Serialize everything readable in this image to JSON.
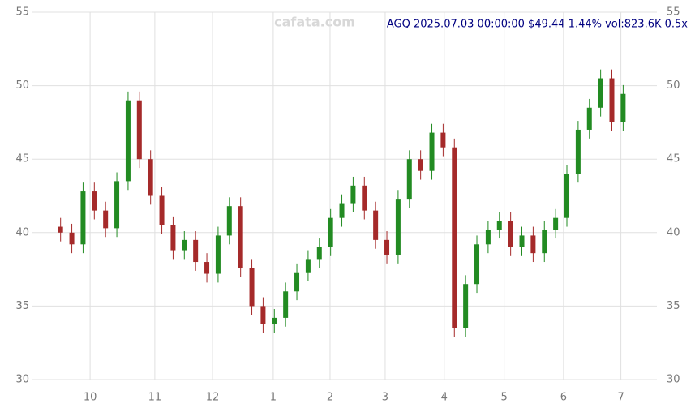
{
  "chart_data": {
    "type": "candlestick",
    "title": "AGQ 2025.07.03 00:00:00 $49.44 1.44% vol:823.6K 0.5x",
    "watermark": "cafata.com",
    "x": [
      0,
      4,
      8,
      12,
      16,
      20,
      24,
      28,
      32,
      36,
      40,
      44,
      48,
      52,
      56,
      60,
      64,
      68,
      72,
      76,
      80,
      84,
      88,
      92,
      96,
      100,
      104,
      108,
      112,
      116,
      120,
      124,
      128,
      132,
      136,
      140,
      144,
      148,
      152,
      156,
      160,
      164,
      168,
      172,
      176,
      180,
      184,
      188,
      192,
      196,
      200
    ],
    "open": [
      40.4,
      40.0,
      39.2,
      42.8,
      41.5,
      40.3,
      43.5,
      49.0,
      45.0,
      42.5,
      40.5,
      38.8,
      39.5,
      38.0,
      37.2,
      39.8,
      41.8,
      37.6,
      35.0,
      33.8,
      34.2,
      36.0,
      37.3,
      38.2,
      39.0,
      41.0,
      42.0,
      43.2,
      41.5,
      39.5,
      38.5,
      42.3,
      45.0,
      44.2,
      46.8,
      45.8,
      33.5,
      36.5,
      39.2,
      40.2,
      40.8,
      39.0,
      39.8,
      38.6,
      40.2,
      41.0,
      44.0,
      47.0,
      48.5,
      50.5,
      47.5
    ],
    "high": [
      41.0,
      40.6,
      43.4,
      43.4,
      42.1,
      44.1,
      49.6,
      49.6,
      45.6,
      43.1,
      41.1,
      40.1,
      40.1,
      38.6,
      40.4,
      42.4,
      42.4,
      38.2,
      35.6,
      34.8,
      36.6,
      37.9,
      38.8,
      39.6,
      41.6,
      42.6,
      43.8,
      43.8,
      42.1,
      40.1,
      42.9,
      45.6,
      45.6,
      47.4,
      47.4,
      46.4,
      37.1,
      39.8,
      40.8,
      41.4,
      41.4,
      40.4,
      40.4,
      40.8,
      41.6,
      44.6,
      47.6,
      49.1,
      51.1,
      51.1,
      50.04
    ],
    "low": [
      39.4,
      38.6,
      38.6,
      40.9,
      39.7,
      39.7,
      42.9,
      44.4,
      41.9,
      39.9,
      38.2,
      38.2,
      37.4,
      36.6,
      36.6,
      39.2,
      37.0,
      34.4,
      33.2,
      33.2,
      33.6,
      35.4,
      36.7,
      37.6,
      38.4,
      40.4,
      41.4,
      40.9,
      38.9,
      37.9,
      37.9,
      41.7,
      43.6,
      43.6,
      45.2,
      32.9,
      32.9,
      35.9,
      38.6,
      39.6,
      38.4,
      38.4,
      38.0,
      38.0,
      39.6,
      40.4,
      43.4,
      46.4,
      47.9,
      46.9,
      46.9
    ],
    "close": [
      40.0,
      39.2,
      42.8,
      41.5,
      40.3,
      43.5,
      49.0,
      45.0,
      42.5,
      40.5,
      38.8,
      39.5,
      38.0,
      37.2,
      39.8,
      41.8,
      37.6,
      35.0,
      33.8,
      34.2,
      36.0,
      37.3,
      38.2,
      39.0,
      41.0,
      42.0,
      43.2,
      41.5,
      39.5,
      38.5,
      42.3,
      45.0,
      44.2,
      46.8,
      45.8,
      33.5,
      36.5,
      39.2,
      40.2,
      40.8,
      39.0,
      39.8,
      38.6,
      40.2,
      41.0,
      44.0,
      47.0,
      48.5,
      50.5,
      47.5,
      49.44
    ],
    "up_color": "#228b22",
    "down_color": "#a52a2a",
    "xlim": [
      -10,
      212
    ],
    "ylim": [
      30,
      55
    ],
    "xticks": [
      {
        "value": 10.5,
        "label": "10"
      },
      {
        "value": 33.5,
        "label": "11"
      },
      {
        "value": 54,
        "label": "12"
      },
      {
        "value": 75.6,
        "label": "1"
      },
      {
        "value": 95.8,
        "label": "2"
      },
      {
        "value": 115.4,
        "label": "3"
      },
      {
        "value": 136.4,
        "label": "4"
      },
      {
        "value": 157.7,
        "label": "5"
      },
      {
        "value": 178.8,
        "label": "6"
      },
      {
        "value": 199.2,
        "label": "7"
      }
    ],
    "yticks": [
      30,
      35,
      40,
      45,
      50,
      55
    ],
    "grid": true
  }
}
